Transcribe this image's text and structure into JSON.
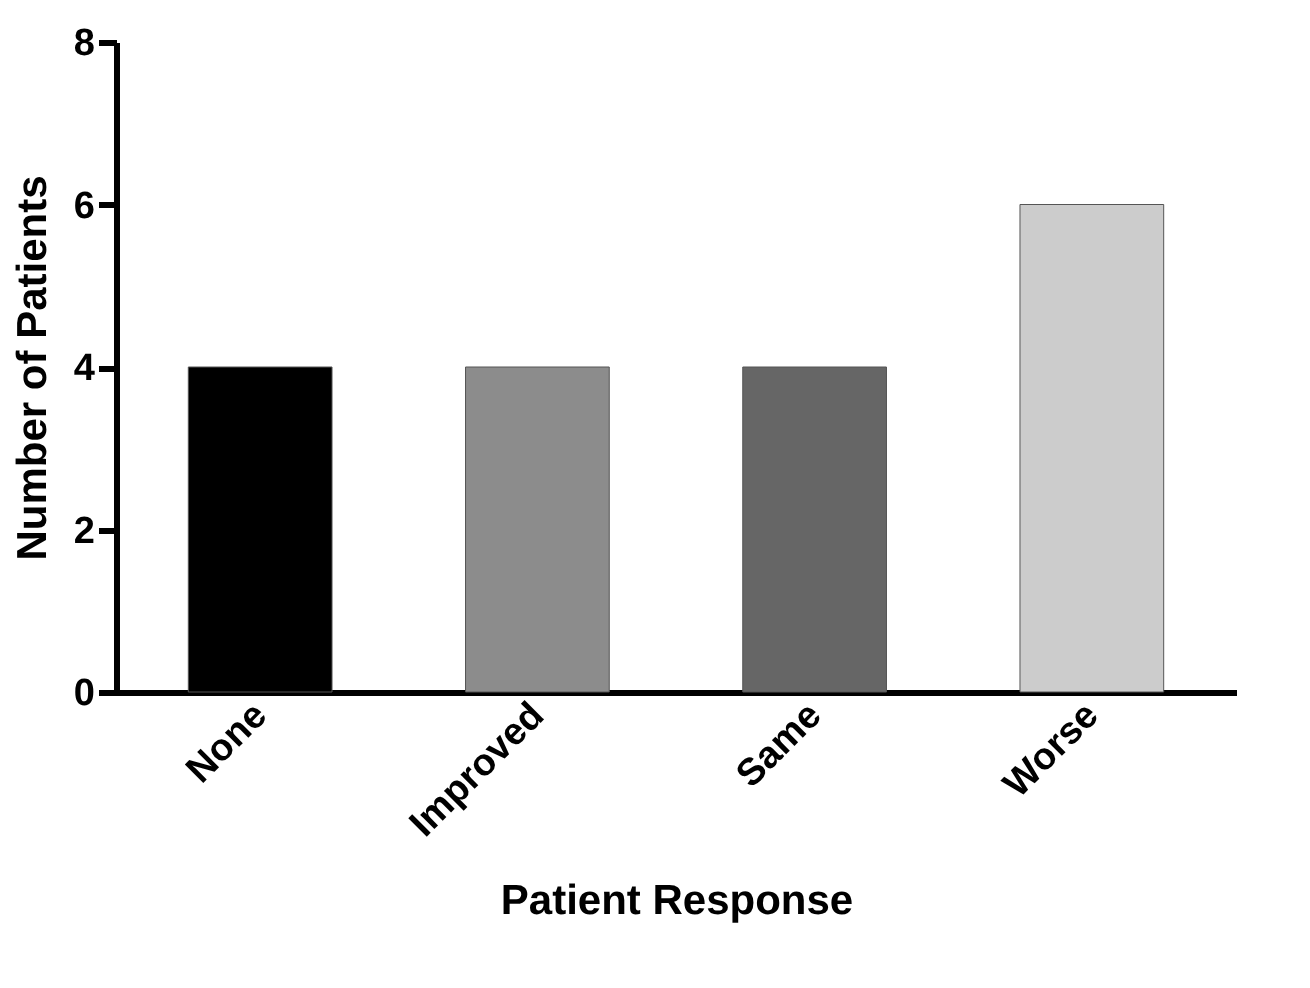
{
  "chart_data": {
    "type": "bar",
    "xlabel": "Patient Response",
    "ylabel": "Number of Patients",
    "categories": [
      "None",
      "Improved",
      "Same",
      "Worse"
    ],
    "values": [
      4,
      4,
      4,
      6
    ],
    "colors": [
      "#000000",
      "#8c8c8c",
      "#666666",
      "#cccccc"
    ],
    "ylim": [
      0,
      8
    ],
    "yticks": [
      0,
      2,
      4,
      6,
      8
    ],
    "grid": false,
    "legend": false
  }
}
